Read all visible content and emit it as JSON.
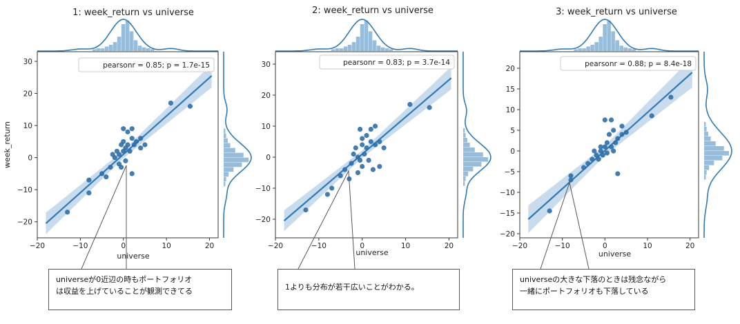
{
  "chart_data": [
    {
      "type": "scatter",
      "title": "1: week_return vs universe",
      "xlabel": "universe",
      "ylabel": "week_return",
      "xlim": [
        -20,
        22
      ],
      "ylim": [
        -25,
        33
      ],
      "xticks": [
        -20,
        -10,
        0,
        10,
        20
      ],
      "yticks": [
        -20,
        -10,
        0,
        10,
        20,
        30
      ],
      "annotation": "pearsonr = 0.85; p = 1.7e-15",
      "regression": {
        "x0": -18,
        "y0": -20.5,
        "x1": 20.5,
        "y1": 25.5
      },
      "points": [
        [
          -13,
          -17
        ],
        [
          -8,
          -11
        ],
        [
          -8,
          -7
        ],
        [
          -5,
          -5
        ],
        [
          -4,
          -6
        ],
        [
          -3,
          -3
        ],
        [
          -2.5,
          1
        ],
        [
          -2,
          0
        ],
        [
          -1.5,
          2
        ],
        [
          -1,
          1
        ],
        [
          -1,
          -2
        ],
        [
          -0.5,
          -3
        ],
        [
          -0.5,
          4
        ],
        [
          0,
          9
        ],
        [
          0,
          5
        ],
        [
          0,
          2
        ],
        [
          0.5,
          -1
        ],
        [
          0.5,
          3
        ],
        [
          1,
          8
        ],
        [
          1,
          4
        ],
        [
          1.5,
          2
        ],
        [
          2,
          9
        ],
        [
          2,
          6
        ],
        [
          2,
          -5
        ],
        [
          2.5,
          4
        ],
        [
          3,
          5
        ],
        [
          4,
          3
        ],
        [
          4,
          6
        ],
        [
          5,
          4
        ],
        [
          11,
          17
        ],
        [
          15.5,
          16
        ]
      ]
    },
    {
      "type": "scatter",
      "title": "2: week_return vs universe",
      "xlabel": "universe",
      "xlim": [
        -20,
        22
      ],
      "ylim": [
        -26,
        34
      ],
      "xticks": [
        -20,
        -10,
        0,
        10,
        20
      ],
      "yticks": [
        -20,
        -10,
        0,
        10,
        20,
        30
      ],
      "annotation": "pearsonr = 0.83; p = 3.7e-14",
      "regression": {
        "x0": -18,
        "y0": -20.5,
        "x1": 20.5,
        "y1": 25.5
      },
      "points": [
        [
          -13,
          -17
        ],
        [
          -8,
          -12
        ],
        [
          -7,
          -10
        ],
        [
          -5,
          -6
        ],
        [
          -4,
          -4
        ],
        [
          -3,
          -7
        ],
        [
          -2.5,
          -2
        ],
        [
          -2,
          1
        ],
        [
          -1.5,
          3
        ],
        [
          -1,
          0
        ],
        [
          -1,
          -5
        ],
        [
          -0.5,
          -1
        ],
        [
          -0.5,
          9
        ],
        [
          0,
          6
        ],
        [
          0,
          4
        ],
        [
          0,
          -3
        ],
        [
          0.5,
          1
        ],
        [
          1,
          7
        ],
        [
          1,
          3
        ],
        [
          1.5,
          -1
        ],
        [
          2,
          9
        ],
        [
          2,
          5
        ],
        [
          2.5,
          -4
        ],
        [
          3,
          10
        ],
        [
          3,
          4
        ],
        [
          4,
          5
        ],
        [
          4,
          -3
        ],
        [
          5,
          3
        ],
        [
          11,
          17
        ],
        [
          15.5,
          16
        ]
      ]
    },
    {
      "type": "scatter",
      "title": "3: week_return vs universe",
      "xlabel": "universe",
      "xlim": [
        -20,
        22
      ],
      "ylim": [
        -21,
        24
      ],
      "xticks": [
        -20,
        -10,
        0,
        10,
        20
      ],
      "yticks": [
        -20,
        -15,
        -10,
        -5,
        0,
        5,
        10,
        15,
        20
      ],
      "annotation": "pearsonr = 0.88; p = 8.4e-18",
      "regression": {
        "x0": -18,
        "y0": -16.5,
        "x1": 20.5,
        "y1": 19
      },
      "points": [
        [
          -13,
          -14.5
        ],
        [
          -8,
          -7
        ],
        [
          -8,
          -6
        ],
        [
          -5,
          -4
        ],
        [
          -4,
          -3
        ],
        [
          -3,
          -2
        ],
        [
          -2.5,
          0
        ],
        [
          -2,
          -1
        ],
        [
          -1.5,
          -2
        ],
        [
          -1,
          1
        ],
        [
          -1,
          0
        ],
        [
          -0.5,
          -1
        ],
        [
          0,
          7.5
        ],
        [
          0,
          1
        ],
        [
          0.5,
          -0.5
        ],
        [
          0.5,
          2
        ],
        [
          1,
          4
        ],
        [
          1.5,
          1
        ],
        [
          1.5,
          7.5
        ],
        [
          2,
          0
        ],
        [
          2,
          5
        ],
        [
          2.5,
          2
        ],
        [
          3,
          3
        ],
        [
          3,
          -5.5
        ],
        [
          4,
          4
        ],
        [
          4,
          6
        ],
        [
          5,
          4.5
        ],
        [
          11,
          8.5
        ],
        [
          15.5,
          13
        ]
      ]
    }
  ],
  "callouts": [
    {
      "lines": [
        "universeが0近辺の時もポートフォリオ",
        "は収益を上げていることが観測できてる"
      ]
    },
    {
      "lines": [
        "1よりも分布が若干広いことがわかる。"
      ]
    },
    {
      "lines": [
        "universeの大きな下落のときは残念ながら",
        "一緒にポートフォリオも下落している"
      ]
    }
  ],
  "colors": {
    "point": "#2f6ea6",
    "line": "#2f79b4",
    "band": "#b7d0e8",
    "hist": "#86b1d4"
  }
}
